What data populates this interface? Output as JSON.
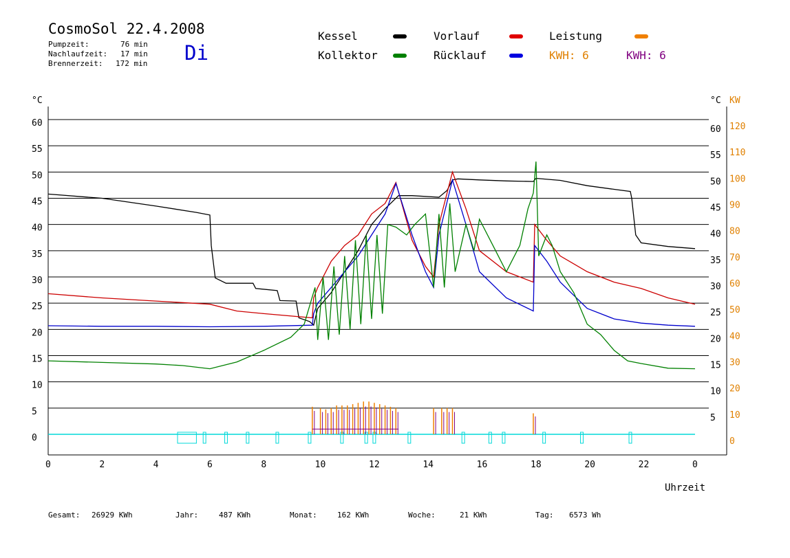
{
  "header": {
    "title": "CosmoSol 22.4.2008",
    "day": "Di",
    "stats": [
      {
        "label": "Pumpzeit:",
        "value": "76 min"
      },
      {
        "label": "Nachlaufzeit:",
        "value": "17 min"
      },
      {
        "label": "Brennerzeit:",
        "value": "172 min"
      }
    ]
  },
  "legend": {
    "kessel": {
      "label": "Kessel",
      "color": "#000000"
    },
    "kollektor": {
      "label": "Kollektor",
      "color": "#008000"
    },
    "vorlauf": {
      "label": "Vorlauf",
      "color": "#e00000"
    },
    "ruecklauf": {
      "label": "Rücklauf",
      "color": "#0000e0"
    },
    "leistung": {
      "label": "Leistung",
      "color": "#f08000"
    },
    "kwh_orange": "KWH: 6",
    "kwh_purple": "KWH: 6"
  },
  "footer": [
    {
      "label": "Gesamt:",
      "value": "26929 KWh"
    },
    {
      "label": "Jahr:",
      "value": "487 KWh"
    },
    {
      "label": "Monat:",
      "value": "162 KWh"
    },
    {
      "label": "Woche:",
      "value": "21 KWh"
    },
    {
      "label": "Tag:",
      "value": "6573 Wh"
    }
  ],
  "chart_data": {
    "type": "line",
    "xlabel": "Uhrzeit",
    "ylabel_left": "°C",
    "ylabel_right": "°C",
    "ylabel_right2": "KW",
    "xlim": [
      0,
      24
    ],
    "ylim": [
      0,
      60
    ],
    "ylim_right2": [
      0,
      120
    ],
    "x_ticks": [
      "0",
      "2",
      "4",
      "6",
      "8",
      "10",
      "12",
      "14",
      "16",
      "18",
      "20",
      "22",
      "0"
    ],
    "y_ticks_left": [
      "0",
      "5",
      "10",
      "15",
      "20",
      "25",
      "30",
      "35",
      "40",
      "45",
      "50",
      "55",
      "60"
    ],
    "y_ticks_right": [
      "5",
      "10",
      "15",
      "20",
      "25",
      "30",
      "35",
      "40",
      "45",
      "50",
      "55",
      "60"
    ],
    "y_ticks_right2": [
      "0",
      "10",
      "20",
      "30",
      "40",
      "50",
      "60",
      "70",
      "80",
      "90",
      "100",
      "110",
      "120"
    ],
    "grid": "horizontal",
    "series": [
      {
        "name": "Kessel",
        "color": "#000000",
        "points": [
          [
            0,
            45.8
          ],
          [
            2,
            45
          ],
          [
            4,
            43.5
          ],
          [
            5.5,
            42.3
          ],
          [
            6,
            41.8
          ],
          [
            6.05,
            36
          ],
          [
            6.2,
            29.8
          ],
          [
            6.6,
            28.8
          ],
          [
            7.6,
            28.8
          ],
          [
            7.7,
            27.8
          ],
          [
            8.5,
            27.4
          ],
          [
            8.6,
            25.5
          ],
          [
            9.2,
            25.4
          ],
          [
            9.3,
            22.2
          ],
          [
            9.7,
            21.5
          ],
          [
            9.85,
            20.8
          ],
          [
            10,
            24
          ],
          [
            10.5,
            27
          ],
          [
            11,
            31
          ],
          [
            11.5,
            35
          ],
          [
            12,
            40
          ],
          [
            12.5,
            43
          ],
          [
            13,
            45.5
          ],
          [
            13.5,
            45.5
          ],
          [
            14.5,
            45.2
          ],
          [
            14.8,
            46.5
          ],
          [
            15,
            48.5
          ],
          [
            15.2,
            48.7
          ],
          [
            16,
            48.5
          ],
          [
            17,
            48.3
          ],
          [
            18,
            48.2
          ],
          [
            18.1,
            48.8
          ],
          [
            19,
            48.4
          ],
          [
            20,
            47.4
          ],
          [
            21,
            46.7
          ],
          [
            21.6,
            46.3
          ],
          [
            21.65,
            45
          ],
          [
            21.8,
            38
          ],
          [
            22,
            36.5
          ],
          [
            23,
            35.8
          ],
          [
            24,
            35.4
          ]
        ]
      },
      {
        "name": "Vorlauf",
        "color": "#cc0000",
        "points": [
          [
            0,
            26.8
          ],
          [
            2,
            26
          ],
          [
            4,
            25.4
          ],
          [
            6,
            24.8
          ],
          [
            7,
            23.5
          ],
          [
            8,
            23
          ],
          [
            9.8,
            22.2
          ],
          [
            9.85,
            26
          ],
          [
            10,
            28
          ],
          [
            10.5,
            33
          ],
          [
            11,
            36
          ],
          [
            11.5,
            38
          ],
          [
            12,
            42
          ],
          [
            12.5,
            44
          ],
          [
            12.9,
            48
          ],
          [
            13.5,
            37
          ],
          [
            14,
            32
          ],
          [
            14.3,
            30
          ],
          [
            14.5,
            40
          ],
          [
            15,
            50
          ],
          [
            15.5,
            43
          ],
          [
            16,
            35
          ],
          [
            17,
            31
          ],
          [
            18,
            29
          ],
          [
            18.05,
            40
          ],
          [
            18.5,
            37
          ],
          [
            19,
            34
          ],
          [
            20,
            31
          ],
          [
            21,
            29
          ],
          [
            22,
            27.8
          ],
          [
            23,
            26
          ],
          [
            24,
            24.8
          ]
        ]
      },
      {
        "name": "Rücklauf",
        "color": "#0000cc",
        "points": [
          [
            0,
            20.7
          ],
          [
            2,
            20.6
          ],
          [
            4,
            20.6
          ],
          [
            6,
            20.5
          ],
          [
            8,
            20.6
          ],
          [
            9.8,
            20.8
          ],
          [
            9.85,
            23
          ],
          [
            10,
            25
          ],
          [
            10.5,
            28
          ],
          [
            11,
            31
          ],
          [
            11.5,
            34
          ],
          [
            12,
            38
          ],
          [
            12.5,
            42
          ],
          [
            12.9,
            47.8
          ],
          [
            13.5,
            38
          ],
          [
            14,
            31
          ],
          [
            14.3,
            28
          ],
          [
            14.5,
            38
          ],
          [
            15,
            48.5
          ],
          [
            15.5,
            40
          ],
          [
            16,
            31
          ],
          [
            17,
            26
          ],
          [
            18,
            23.5
          ],
          [
            18.05,
            36
          ],
          [
            18.5,
            33
          ],
          [
            19,
            29
          ],
          [
            20,
            24
          ],
          [
            21,
            22
          ],
          [
            22,
            21.2
          ],
          [
            23,
            20.8
          ],
          [
            24,
            20.6
          ]
        ]
      },
      {
        "name": "Kollektor",
        "color": "#008000",
        "points": [
          [
            0,
            14
          ],
          [
            2,
            13.7
          ],
          [
            4,
            13.4
          ],
          [
            5,
            13.1
          ],
          [
            6,
            12.5
          ],
          [
            7,
            13.8
          ],
          [
            8,
            16
          ],
          [
            9,
            18.5
          ],
          [
            9.5,
            21
          ],
          [
            9.9,
            28
          ],
          [
            10,
            18
          ],
          [
            10.2,
            30
          ],
          [
            10.4,
            18
          ],
          [
            10.6,
            32
          ],
          [
            10.8,
            19
          ],
          [
            11,
            34
          ],
          [
            11.2,
            20
          ],
          [
            11.4,
            37
          ],
          [
            11.6,
            21
          ],
          [
            11.8,
            38
          ],
          [
            12,
            22
          ],
          [
            12.2,
            38
          ],
          [
            12.4,
            23
          ],
          [
            12.6,
            40
          ],
          [
            12.9,
            39.5
          ],
          [
            13.3,
            38
          ],
          [
            13.6,
            40
          ],
          [
            14,
            42
          ],
          [
            14.3,
            28
          ],
          [
            14.5,
            42
          ],
          [
            14.7,
            28
          ],
          [
            14.9,
            44
          ],
          [
            15.1,
            31
          ],
          [
            15.5,
            40
          ],
          [
            15.8,
            35
          ],
          [
            16,
            41
          ],
          [
            16.5,
            36
          ],
          [
            17,
            31
          ],
          [
            17.5,
            36
          ],
          [
            17.8,
            43
          ],
          [
            18,
            46
          ],
          [
            18.1,
            52
          ],
          [
            18.2,
            34
          ],
          [
            18.5,
            38
          ],
          [
            18.7,
            36
          ],
          [
            19,
            31
          ],
          [
            19.5,
            27
          ],
          [
            20,
            21
          ],
          [
            20.5,
            19
          ],
          [
            21,
            16
          ],
          [
            21.5,
            14
          ],
          [
            22,
            13.5
          ],
          [
            23,
            12.6
          ],
          [
            24,
            12.5
          ]
        ]
      }
    ],
    "leistung": {
      "name": "Leistung",
      "color": "#f08000",
      "spikes": [
        [
          9.8,
          10.5
        ],
        [
          10.1,
          10
        ],
        [
          10.3,
          9.5
        ],
        [
          10.5,
          10
        ],
        [
          10.7,
          11
        ],
        [
          10.9,
          11
        ],
        [
          11.1,
          11
        ],
        [
          11.3,
          11.5
        ],
        [
          11.5,
          12
        ],
        [
          11.7,
          12.5
        ],
        [
          11.9,
          12.5
        ],
        [
          12.1,
          12
        ],
        [
          12.3,
          11.5
        ],
        [
          12.5,
          11
        ],
        [
          12.7,
          10.5
        ],
        [
          12.9,
          10
        ],
        [
          14.3,
          10
        ],
        [
          14.6,
          10
        ],
        [
          14.8,
          10
        ],
        [
          15,
          10
        ],
        [
          18,
          8
        ]
      ]
    },
    "pump_intervals": [
      [
        4.8,
        5.5
      ],
      [
        5.75,
        5.85
      ],
      [
        6.55,
        6.65
      ],
      [
        7.35,
        7.45
      ],
      [
        8.45,
        8.55
      ],
      [
        9.65,
        9.75
      ],
      [
        10.85,
        10.95
      ],
      [
        11.75,
        11.85
      ],
      [
        12.05,
        12.15
      ],
      [
        13.35,
        13.45
      ],
      [
        15.35,
        15.45
      ],
      [
        16.35,
        16.45
      ],
      [
        16.85,
        16.95
      ],
      [
        18.35,
        18.45
      ],
      [
        19.75,
        19.85
      ],
      [
        21.55,
        21.65
      ]
    ]
  }
}
